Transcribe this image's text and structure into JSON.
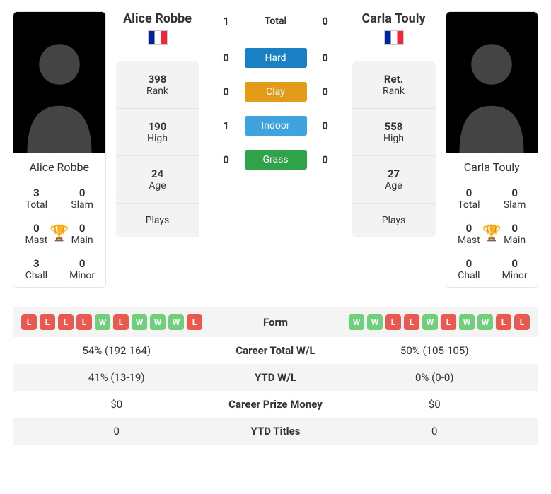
{
  "player1": {
    "name": "Alice Robbe",
    "flag": "france",
    "trophies": {
      "total": {
        "value": "3",
        "label": "Total"
      },
      "slam": {
        "value": "0",
        "label": "Slam"
      },
      "mast": {
        "value": "0",
        "label": "Mast"
      },
      "main": {
        "value": "0",
        "label": "Main"
      },
      "chall": {
        "value": "3",
        "label": "Chall"
      },
      "minor": {
        "value": "0",
        "label": "Minor"
      }
    },
    "stats": {
      "rank": {
        "value": "398",
        "label": "Rank"
      },
      "high": {
        "value": "190",
        "label": "High"
      },
      "age": {
        "value": "24",
        "label": "Age"
      },
      "plays": {
        "value": "",
        "label": "Plays"
      }
    }
  },
  "player2": {
    "name": "Carla Touly",
    "flag": "france",
    "trophies": {
      "total": {
        "value": "0",
        "label": "Total"
      },
      "slam": {
        "value": "0",
        "label": "Slam"
      },
      "mast": {
        "value": "0",
        "label": "Mast"
      },
      "main": {
        "value": "0",
        "label": "Main"
      },
      "chall": {
        "value": "0",
        "label": "Chall"
      },
      "minor": {
        "value": "0",
        "label": "Minor"
      }
    },
    "stats": {
      "rank": {
        "value": "Ret.",
        "label": "Rank"
      },
      "high": {
        "value": "558",
        "label": "High"
      },
      "age": {
        "value": "27",
        "label": "Age"
      },
      "plays": {
        "value": "",
        "label": "Plays"
      }
    }
  },
  "h2h": {
    "surfaces": [
      {
        "label": "Total",
        "class": "plain",
        "p1": "1",
        "p2": "0"
      },
      {
        "label": "Hard",
        "class": "hard",
        "p1": "0",
        "p2": "0"
      },
      {
        "label": "Clay",
        "class": "clay",
        "p1": "0",
        "p2": "0"
      },
      {
        "label": "Indoor",
        "class": "indoor",
        "p1": "1",
        "p2": "0"
      },
      {
        "label": "Grass",
        "class": "grass",
        "p1": "0",
        "p2": "0"
      }
    ]
  },
  "colors": {
    "win": "#6fcf7a",
    "loss": "#e85a4f",
    "hard": "#1b7fc4",
    "clay": "#e39b1a",
    "indoor": "#3fa3e0",
    "grass": "#2fa24a",
    "trophy": "#4a77c9"
  },
  "table": [
    {
      "label": "Form",
      "p1_form": [
        "L",
        "L",
        "L",
        "L",
        "W",
        "L",
        "W",
        "W",
        "W",
        "L"
      ],
      "p2_form": [
        "W",
        "W",
        "L",
        "L",
        "W",
        "L",
        "W",
        "W",
        "L",
        "L"
      ]
    },
    {
      "label": "Career Total W/L",
      "p1": "54% (192-164)",
      "p2": "50% (105-105)"
    },
    {
      "label": "YTD W/L",
      "p1": "41% (13-19)",
      "p2": "0% (0-0)"
    },
    {
      "label": "Career Prize Money",
      "p1": "$0",
      "p2": "$0"
    },
    {
      "label": "YTD Titles",
      "p1": "0",
      "p2": "0"
    }
  ]
}
